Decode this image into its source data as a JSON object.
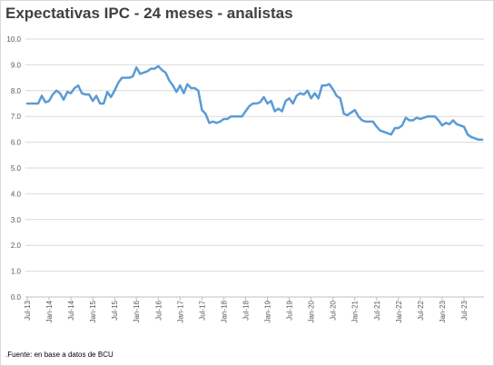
{
  "chart_data": {
    "type": "line",
    "title": "Expectativas IPC - 24 meses - analistas",
    "xlabel": "",
    "ylabel": "",
    "ylim": [
      0,
      10
    ],
    "y_ticks": [
      "0.0",
      "1.0",
      "2.0",
      "3.0",
      "4.0",
      "5.0",
      "6.0",
      "7.0",
      "8.0",
      "9.0",
      "10.0"
    ],
    "x_ticks": [
      "Jul-13",
      "Jan-14",
      "Jul-14",
      "Jan-15",
      "Jul-15",
      "Jan-16",
      "Jul-16",
      "Jan-17",
      "Jul-17",
      "Jan-18",
      "Jul-18",
      "Jan-19",
      "Jul-19",
      "Jan-20",
      "Jul-20",
      "Jan-21",
      "Jul-21",
      "Jan-22",
      "Jul-22",
      "Jan-23",
      "Jul-23"
    ],
    "grid": true,
    "legend": "none",
    "line_color": "#5b9bd5",
    "series": [
      {
        "x": [
          "2013-07",
          "2013-08",
          "2013-09",
          "2013-10",
          "2013-11",
          "2013-12",
          "2014-01",
          "2014-02",
          "2014-03",
          "2014-04",
          "2014-05",
          "2014-06",
          "2014-07",
          "2014-08",
          "2014-09",
          "2014-10",
          "2014-11",
          "2014-12",
          "2015-01",
          "2015-02",
          "2015-03",
          "2015-04",
          "2015-05",
          "2015-06",
          "2015-07",
          "2015-08",
          "2015-09",
          "2015-10",
          "2015-11",
          "2015-12",
          "2016-01",
          "2016-02",
          "2016-03",
          "2016-04",
          "2016-05",
          "2016-06",
          "2016-07",
          "2016-08",
          "2016-09",
          "2016-10",
          "2016-11",
          "2016-12",
          "2017-01",
          "2017-02",
          "2017-03",
          "2017-04",
          "2017-05",
          "2017-06",
          "2017-07",
          "2017-08",
          "2017-09",
          "2017-10",
          "2017-11",
          "2017-12",
          "2018-01",
          "2018-02",
          "2018-03",
          "2018-04",
          "2018-05",
          "2018-06",
          "2018-07",
          "2018-08",
          "2018-09",
          "2018-10",
          "2018-11",
          "2018-12",
          "2019-01",
          "2019-02",
          "2019-03",
          "2019-04",
          "2019-05",
          "2019-06",
          "2019-07",
          "2019-08",
          "2019-09",
          "2019-10",
          "2019-11",
          "2019-12",
          "2020-01",
          "2020-02",
          "2020-03",
          "2020-04",
          "2020-05",
          "2020-06",
          "2020-07",
          "2020-08",
          "2020-09",
          "2020-10",
          "2020-11",
          "2020-12",
          "2021-01",
          "2021-02",
          "2021-03",
          "2021-04",
          "2021-05",
          "2021-06",
          "2021-07",
          "2021-08",
          "2021-09",
          "2021-10",
          "2021-11",
          "2021-12",
          "2022-01",
          "2022-02",
          "2022-03",
          "2022-04",
          "2022-05",
          "2022-06",
          "2022-07",
          "2022-08",
          "2022-09",
          "2022-10",
          "2022-11",
          "2022-12",
          "2023-01",
          "2023-02",
          "2023-03",
          "2023-04",
          "2023-05",
          "2023-06",
          "2023-07",
          "2023-08",
          "2023-09",
          "2023-10",
          "2023-11",
          "2023-12"
        ],
        "values": [
          7.5,
          7.5,
          7.5,
          7.5,
          7.8,
          7.55,
          7.6,
          7.85,
          8.0,
          7.9,
          7.65,
          7.95,
          7.9,
          8.1,
          8.2,
          7.9,
          7.85,
          7.85,
          7.6,
          7.8,
          7.5,
          7.5,
          7.95,
          7.75,
          8.0,
          8.3,
          8.5,
          8.5,
          8.5,
          8.55,
          8.9,
          8.65,
          8.7,
          8.75,
          8.85,
          8.85,
          8.95,
          8.8,
          8.7,
          8.4,
          8.2,
          7.95,
          8.2,
          7.9,
          8.25,
          8.1,
          8.1,
          8.0,
          7.25,
          7.1,
          6.75,
          6.8,
          6.75,
          6.8,
          6.9,
          6.9,
          7.0,
          7.0,
          7.0,
          7.0,
          7.2,
          7.4,
          7.5,
          7.5,
          7.55,
          7.75,
          7.5,
          7.6,
          7.2,
          7.3,
          7.2,
          7.6,
          7.7,
          7.5,
          7.8,
          7.9,
          7.85,
          8.0,
          7.7,
          7.9,
          7.7,
          8.2,
          8.2,
          8.25,
          8.05,
          7.8,
          7.7,
          7.1,
          7.05,
          7.15,
          7.25,
          7.0,
          6.85,
          6.8,
          6.8,
          6.8,
          6.6,
          6.45,
          6.4,
          6.35,
          6.3,
          6.55,
          6.55,
          6.65,
          6.95,
          6.85,
          6.85,
          6.95,
          6.9,
          6.95,
          7.0,
          7.0,
          7.0,
          6.85,
          6.65,
          6.75,
          6.7,
          6.85,
          6.7,
          6.65,
          6.6,
          6.3,
          6.2,
          6.15,
          6.1,
          6.1
        ]
      }
    ]
  },
  "footer": {
    "source": ".Fuente: en base a datos de BCU"
  }
}
